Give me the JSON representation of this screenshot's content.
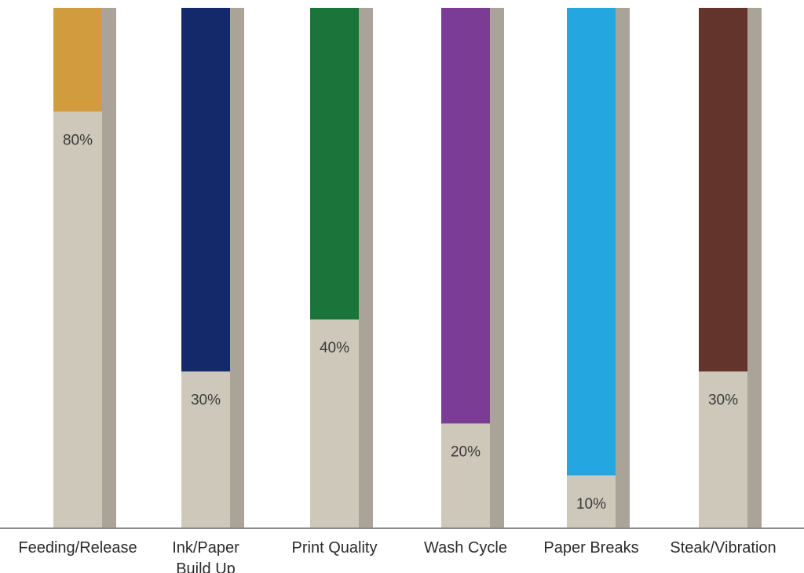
{
  "chart_data": {
    "type": "bar",
    "categories": [
      [
        "Feeding/Release"
      ],
      [
        "Ink/Paper",
        "Build Up"
      ],
      [
        "Print Quality"
      ],
      [
        "Wash Cycle"
      ],
      [
        "Paper Breaks"
      ],
      [
        "Steak/Vibration"
      ]
    ],
    "values": [
      80,
      30,
      40,
      20,
      10,
      30
    ],
    "value_labels": [
      "80%",
      "30%",
      "40%",
      "20%",
      "10%",
      "30%"
    ],
    "ylim": [
      0,
      100
    ],
    "title": "",
    "xlabel": "",
    "ylabel": "",
    "grid": false,
    "colors": {
      "fill": "#cdc8b9",
      "shadow": "#a9a497",
      "remainder": [
        "#d09c3d",
        "#13296a",
        "#1b753a",
        "#7b3c95",
        "#24a7e0",
        "#62342b"
      ],
      "baseline": "#8a8a8a"
    }
  }
}
